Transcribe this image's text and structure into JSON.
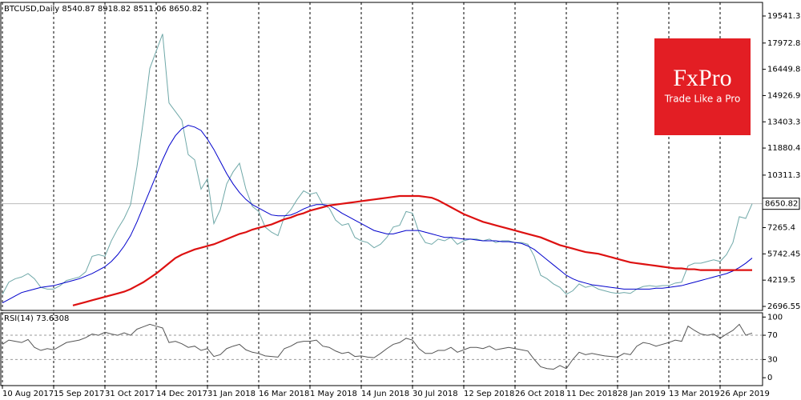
{
  "chart_data": [
    {
      "type": "line",
      "title": "BTCUSD,Daily  8540.87 8918.82 8511.06 8650.82",
      "categories": [
        "10 Aug 2017",
        null,
        null,
        null,
        null,
        null,
        null,
        null,
        "15 Sep 2017",
        null,
        null,
        null,
        null,
        null,
        null,
        null,
        "31 Oct 2017",
        null,
        null,
        null,
        null,
        null,
        null,
        null,
        "14 Dec 2017",
        null,
        null,
        null,
        null,
        null,
        null,
        null,
        "31 Jan 2018",
        null,
        null,
        null,
        null,
        null,
        null,
        null,
        "16 Mar 2018",
        null,
        null,
        null,
        null,
        null,
        null,
        null,
        "1 May 2018",
        null,
        null,
        null,
        null,
        null,
        null,
        null,
        "14 Jun 2018",
        null,
        null,
        null,
        null,
        null,
        null,
        null,
        "30 Jul 2018",
        null,
        null,
        null,
        null,
        null,
        null,
        null,
        "12 Sep 2018",
        null,
        null,
        null,
        null,
        null,
        null,
        null,
        "26 Oct 2018",
        null,
        null,
        null,
        null,
        null,
        null,
        null,
        "11 Dec 2018",
        null,
        null,
        null,
        null,
        null,
        null,
        null,
        "28 Jan 2019",
        null,
        null,
        null,
        null,
        null,
        null,
        null,
        "13 Mar 2019",
        null,
        null,
        null,
        null,
        null,
        null,
        null,
        "26 Apr 2019",
        null,
        null,
        null,
        null,
        null
      ],
      "series": [
        {
          "color": "#6fa8a8",
          "values": [
            3400,
            4100,
            4300,
            4400,
            4600,
            4300,
            3800,
            3700,
            3700,
            3900,
            4200,
            4300,
            4400,
            4700,
            5600,
            5700,
            5600,
            6500,
            7200,
            7800,
            8600,
            10800,
            13500,
            16500,
            17500,
            18500,
            14500,
            14000,
            13500,
            11500,
            11200,
            9500,
            10100,
            7500,
            8300,
            9800,
            10500,
            11000,
            9500,
            8500,
            8200,
            7300,
            7000,
            6800,
            7900,
            8300,
            8900,
            9400,
            9200,
            9300,
            8600,
            8400,
            7700,
            7400,
            7500,
            6700,
            6500,
            6400,
            6100,
            6300,
            6700,
            7300,
            7400,
            8200,
            8100,
            7000,
            6400,
            6300,
            6600,
            6500,
            6700,
            6300,
            6500,
            6600,
            6600,
            6500,
            6600,
            6400,
            6500,
            6500,
            6400,
            6400,
            6300,
            5600,
            4500,
            4300,
            4000,
            3800,
            3400,
            3600,
            4000,
            3800,
            3900,
            3700,
            3600,
            3500,
            3450,
            3500,
            3450,
            3700,
            3850,
            3900,
            3850,
            3900,
            3900,
            4050,
            4100,
            5050,
            5200,
            5200,
            5300,
            5400,
            5300,
            5700,
            6400,
            7900,
            7800,
            8650.82
          ]
        },
        {
          "color": "#0000cc",
          "values": [
            2900,
            3100,
            3300,
            3500,
            3600,
            3700,
            3800,
            3850,
            3900,
            4000,
            4100,
            4200,
            4300,
            4450,
            4600,
            4800,
            5000,
            5300,
            5700,
            6200,
            6800,
            7600,
            8500,
            9400,
            10300,
            11200,
            12000,
            12600,
            13000,
            13200,
            13100,
            12900,
            12400,
            11800,
            11100,
            10400,
            9800,
            9300,
            8900,
            8600,
            8400,
            8200,
            8000,
            7950,
            7950,
            8000,
            8150,
            8350,
            8500,
            8600,
            8600,
            8550,
            8350,
            8100,
            7900,
            7700,
            7500,
            7300,
            7100,
            7000,
            6900,
            6900,
            7000,
            7100,
            7100,
            7100,
            7000,
            6900,
            6800,
            6700,
            6700,
            6650,
            6600,
            6600,
            6550,
            6500,
            6500,
            6500,
            6450,
            6450,
            6400,
            6350,
            6200,
            6000,
            5700,
            5400,
            5100,
            4800,
            4500,
            4300,
            4150,
            4050,
            3950,
            3900,
            3850,
            3800,
            3750,
            3700,
            3700,
            3700,
            3700,
            3700,
            3750,
            3750,
            3800,
            3850,
            3900,
            4000,
            4100,
            4200,
            4300,
            4400,
            4500,
            4600,
            4750,
            4950,
            5200,
            5500
          ]
        },
        {
          "color": "#dd1111",
          "values": [
            null,
            null,
            null,
            null,
            null,
            null,
            null,
            null,
            null,
            null,
            null,
            2750,
            2850,
            2950,
            3050,
            3150,
            3250,
            3350,
            3450,
            3550,
            3700,
            3900,
            4100,
            4350,
            4600,
            4900,
            5200,
            5500,
            5700,
            5850,
            6000,
            6100,
            6200,
            6300,
            6450,
            6600,
            6750,
            6900,
            7000,
            7150,
            7250,
            7350,
            7450,
            7600,
            7750,
            7850,
            8000,
            8100,
            8250,
            8350,
            8450,
            8550,
            8600,
            8650,
            8700,
            8750,
            8800,
            8850,
            8900,
            8950,
            9000,
            9050,
            9100,
            9100,
            9100,
            9100,
            9050,
            9000,
            8850,
            8650,
            8450,
            8250,
            8050,
            7900,
            7750,
            7600,
            7500,
            7400,
            7300,
            7200,
            7100,
            7000,
            6900,
            6800,
            6700,
            6550,
            6400,
            6250,
            6150,
            6050,
            5950,
            5850,
            5800,
            5750,
            5650,
            5550,
            5450,
            5350,
            5250,
            5200,
            5150,
            5100,
            5050,
            5000,
            4950,
            4900,
            4900,
            4850,
            4850,
            4800,
            4800,
            4800,
            4800,
            4800,
            4800,
            4800,
            4800,
            4800
          ]
        }
      ],
      "ylim": [
        2464,
        20330
      ],
      "yticks": [
        2696.55,
        4219.5,
        5742.45,
        7265.4,
        10311.3,
        11880.4,
        13403.35,
        14926.9,
        16449.85,
        17972.8,
        19541.3
      ],
      "last_price": 8650.82
    },
    {
      "type": "line",
      "title": "RSI(14) 73.6308",
      "series": [
        {
          "color": "#555555",
          "values": [
            55,
            62,
            60,
            58,
            63,
            50,
            45,
            48,
            46,
            52,
            58,
            60,
            62,
            66,
            72,
            70,
            75,
            72,
            70,
            74,
            70,
            80,
            84,
            88,
            85,
            82,
            58,
            60,
            56,
            50,
            52,
            45,
            48,
            35,
            38,
            48,
            52,
            55,
            46,
            42,
            40,
            36,
            35,
            34,
            48,
            52,
            58,
            60,
            60,
            62,
            52,
            50,
            44,
            40,
            42,
            35,
            36,
            34,
            33,
            40,
            48,
            55,
            58,
            65,
            62,
            48,
            40,
            40,
            45,
            45,
            50,
            42,
            46,
            50,
            50,
            48,
            52,
            46,
            48,
            50,
            48,
            46,
            44,
            30,
            18,
            15,
            14,
            20,
            15,
            30,
            42,
            38,
            40,
            38,
            36,
            35,
            34,
            40,
            38,
            52,
            58,
            56,
            52,
            55,
            58,
            62,
            60,
            85,
            78,
            72,
            70,
            72,
            65,
            72,
            78,
            88,
            70,
            73.6308
          ]
        }
      ],
      "ylim": [
        -13,
        107
      ],
      "yticks": [
        0,
        30,
        70,
        100
      ],
      "levels": [
        30,
        70
      ]
    }
  ],
  "logo": {
    "name": "FxPro",
    "tagline": "Trade Like a Pro"
  }
}
